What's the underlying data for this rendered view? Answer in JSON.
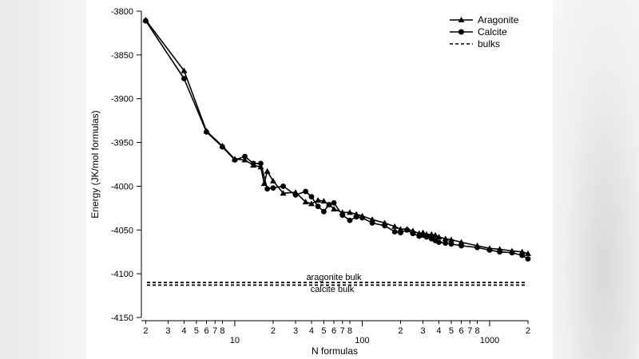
{
  "chart_data": {
    "type": "line",
    "title": "",
    "xlabel": "N formulas",
    "ylabel": "Energy (JK/mol formulas)",
    "xscale": "log",
    "xlim": [
      1.85,
      2000
    ],
    "ylim": [
      -4150,
      -3800
    ],
    "yticks": [
      -3800,
      -3850,
      -3900,
      -3950,
      -4000,
      -4050,
      -4100,
      -4150
    ],
    "xticks": [
      {
        "v": 2,
        "label": "2"
      },
      {
        "v": 3,
        "label": "3"
      },
      {
        "v": 4,
        "label": "4"
      },
      {
        "v": 5,
        "label": "5"
      },
      {
        "v": 6,
        "label": "6"
      },
      {
        "v": 7,
        "label": "7"
      },
      {
        "v": 8,
        "label": "8"
      },
      {
        "v": 10,
        "label": "10"
      },
      {
        "v": 20,
        "label": "2"
      },
      {
        "v": 30,
        "label": "3"
      },
      {
        "v": 40,
        "label": "4"
      },
      {
        "v": 50,
        "label": "5"
      },
      {
        "v": 60,
        "label": "6"
      },
      {
        "v": 70,
        "label": "7"
      },
      {
        "v": 80,
        "label": "8"
      },
      {
        "v": 100,
        "label": "100"
      },
      {
        "v": 200,
        "label": "2"
      },
      {
        "v": 300,
        "label": "3"
      },
      {
        "v": 400,
        "label": "4"
      },
      {
        "v": 500,
        "label": "5"
      },
      {
        "v": 600,
        "label": "6"
      },
      {
        "v": 700,
        "label": "7"
      },
      {
        "v": 800,
        "label": "8"
      },
      {
        "v": 1000,
        "label": "1000"
      },
      {
        "v": 2000,
        "label": "2"
      }
    ],
    "series": [
      {
        "name": "Aragonite",
        "marker": "triangle",
        "x": [
          2,
          4,
          6,
          8,
          10,
          12,
          14,
          16,
          17,
          18,
          20,
          24,
          30,
          36,
          40,
          45,
          50,
          55,
          60,
          70,
          80,
          90,
          100,
          120,
          150,
          180,
          200,
          225,
          250,
          280,
          300,
          320,
          350,
          375,
          400,
          450,
          500,
          600,
          800,
          1000,
          1200,
          1500,
          1800,
          2000
        ],
        "y": [
          -3810,
          -3868,
          -3937,
          -3954,
          -3969,
          -3970,
          -3976,
          -3978,
          -3997,
          -3983,
          -3994,
          -4008,
          -4007,
          -4018,
          -4020,
          -4016,
          -4017,
          -4021,
          -4026,
          -4030,
          -4030,
          -4032,
          -4034,
          -4038,
          -4042,
          -4046,
          -4049,
          -4049,
          -4051,
          -4054,
          -4053,
          -4055,
          -4055,
          -4056,
          -4058,
          -4060,
          -4061,
          -4064,
          -4068,
          -4071,
          -4072,
          -4074,
          -4075,
          -4077
        ]
      },
      {
        "name": "Calcite",
        "marker": "circle",
        "x": [
          2,
          4,
          6,
          8,
          10,
          12,
          14,
          16,
          18,
          20,
          24,
          30,
          36,
          40,
          45,
          50,
          55,
          60,
          70,
          80,
          90,
          100,
          120,
          150,
          180,
          200,
          225,
          250,
          280,
          300,
          320,
          350,
          375,
          400,
          450,
          500,
          600,
          800,
          1000,
          1200,
          1500,
          1800,
          2000
        ],
        "y": [
          -3811,
          -3877,
          -3938,
          -3955,
          -3970,
          -3966,
          -3974,
          -3974,
          -4003,
          -4002,
          -4000,
          -4010,
          -4006,
          -4012,
          -4023,
          -4029,
          -4021,
          -4019,
          -4033,
          -4039,
          -4035,
          -4036,
          -4042,
          -4045,
          -4052,
          -4053,
          -4050,
          -4054,
          -4057,
          -4056,
          -4058,
          -4060,
          -4062,
          -4064,
          -4065,
          -4066,
          -4068,
          -4070,
          -4073,
          -4075,
          -4076,
          -4079,
          -4083
        ]
      }
    ],
    "reference_lines": [
      {
        "name": "aragonite bulk",
        "y": -4110,
        "style": "dashed"
      },
      {
        "name": "calcite bulk",
        "y": -4113,
        "style": "dashed"
      }
    ],
    "annotations": {
      "aragonite_bulk": "aragonite bulk",
      "calcite_bulk": "calcite bulk"
    },
    "legend": {
      "position": "top-right",
      "entries": [
        {
          "label": "Aragonite",
          "marker": "triangle"
        },
        {
          "label": "Calcite",
          "marker": "circle"
        },
        {
          "label": "bulks",
          "marker": "dashed"
        }
      ]
    },
    "colors": {
      "line": "#000000",
      "background": "#ffffff"
    }
  }
}
